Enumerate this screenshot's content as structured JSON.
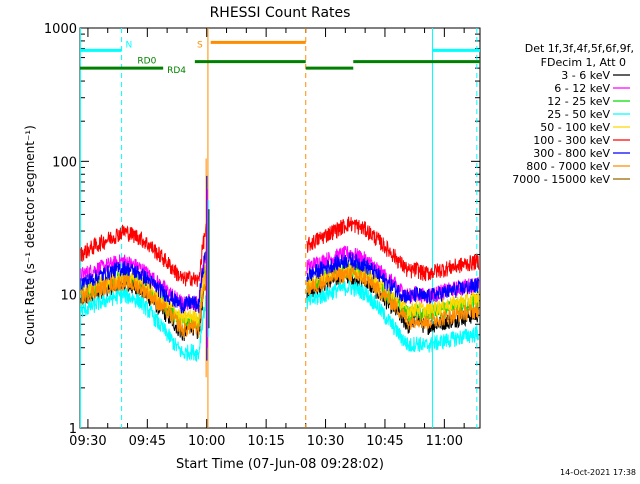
{
  "chart_data": {
    "type": "line",
    "title": "RHESSI Count Rates",
    "xlabel": "Start Time (07-Jun-08 09:28:02)",
    "ylabel": "Count Rate (s⁻¹ detector segment⁻¹)",
    "yscale": "log",
    "ylim": [
      1,
      1000
    ],
    "xlim_min_from_0928": [
      0,
      101
    ],
    "ytick_labels": [
      "1",
      "10",
      "100",
      "1000"
    ],
    "xtick_labels": [
      "09:30",
      "09:45",
      "10:00",
      "10:15",
      "10:30",
      "10:45",
      "11:00"
    ],
    "xtick_minutes": [
      2,
      17,
      32,
      47,
      62,
      77,
      92
    ],
    "legend": {
      "header": [
        "Det 1f,3f,4f,5f,6f,9f,",
        "FDecim 1, Att 0"
      ],
      "entries": [
        {
          "label": "3 - 6 keV",
          "color": "#000000"
        },
        {
          "label": "6 - 12 keV",
          "color": "#ff00ff"
        },
        {
          "label": "12 - 25 keV",
          "color": "#00dd00"
        },
        {
          "label": "25 - 50 keV",
          "color": "#00ffff"
        },
        {
          "label": "50 - 100 keV",
          "color": "#ffd700"
        },
        {
          "label": "100 - 300 keV",
          "color": "#ff0000"
        },
        {
          "label": "300 - 800 keV",
          "color": "#0000ff"
        },
        {
          "label": "800 - 7000 keV",
          "color": "#ff8c00"
        },
        {
          "label": "7000 - 15000 keV",
          "color": "#996600"
        }
      ]
    },
    "series": [
      {
        "name": "3 - 6 keV",
        "color": "#000000",
        "minutes": [
          0,
          8,
          11,
          15,
          20,
          24,
          26,
          28,
          30
        ],
        "values": [
          9,
          11.5,
          12,
          11,
          8,
          6,
          5,
          6,
          5
        ]
      },
      {
        "name": "6 - 12 keV",
        "color": "#ff00ff",
        "minutes": [
          0,
          8,
          11,
          15,
          20,
          24,
          26,
          28,
          30
        ],
        "values": [
          14,
          17,
          18,
          16,
          12,
          9.5,
          8.5,
          9,
          8.5
        ]
      },
      {
        "name": "12 - 25 keV",
        "color": "#00dd00",
        "minutes": [
          0,
          8,
          11,
          15,
          20,
          24,
          26,
          28,
          30
        ],
        "values": [
          10,
          13,
          13.5,
          12.5,
          9,
          7,
          6.2,
          6.5,
          6.2
        ]
      },
      {
        "name": "25 - 50 keV",
        "color": "#00ffff",
        "minutes": [
          0,
          8,
          11,
          15,
          20,
          24,
          26,
          28,
          30
        ],
        "values": [
          7.5,
          9.5,
          10,
          9,
          6,
          4.2,
          3.6,
          3.8,
          3.6
        ]
      },
      {
        "name": "50 - 100 keV",
        "color": "#ffd700",
        "minutes": [
          0,
          8,
          11,
          15,
          20,
          24,
          26,
          28,
          30
        ],
        "values": [
          10.5,
          13,
          13.5,
          12.5,
          9.5,
          7.5,
          6.6,
          7,
          6.6
        ]
      },
      {
        "name": "100 - 300 keV",
        "color": "#ff0000",
        "minutes": [
          0,
          8,
          11,
          15,
          20,
          24,
          26,
          28,
          30
        ],
        "values": [
          20,
          27,
          30,
          27,
          20,
          15,
          13,
          13.5,
          12.5
        ]
      },
      {
        "name": "300 - 800 keV",
        "color": "#0000ff",
        "minutes": [
          0,
          8,
          11,
          15,
          20,
          24,
          26,
          28,
          30
        ],
        "values": [
          12,
          15,
          16,
          14.5,
          11,
          9,
          8.3,
          8.8,
          8.3
        ]
      },
      {
        "name": "800 - 7000 keV",
        "color": "#ff8c00",
        "minutes": [
          0,
          8,
          11,
          15,
          20,
          24,
          26,
          28,
          30
        ],
        "values": [
          9.5,
          12,
          12.5,
          11.5,
          8.5,
          6.5,
          5.4,
          5.8,
          5.4
        ]
      }
    ],
    "flare_spike": {
      "minute": 32.2,
      "peak": 105,
      "low": 2.4
    },
    "gap_minutes": [
      33,
      57
    ],
    "after_gap_factor": 1.15,
    "state_bars": [
      {
        "label": "N",
        "color": "#00ffff",
        "level": 680,
        "segments": [
          [
            0,
            10.5
          ],
          [
            89,
            101
          ]
        ]
      },
      {
        "label": "S",
        "color": "#ff8c00",
        "level": 780,
        "segments": [
          [
            33,
            57
          ]
        ]
      },
      {
        "label": "RD0",
        "color": "#008000",
        "level": 560,
        "segments": [
          [
            29,
            57
          ],
          [
            69,
            101
          ]
        ]
      },
      {
        "label": "RD4",
        "color": "#008000",
        "level": 500,
        "segments": [
          [
            0,
            21
          ],
          [
            57,
            69
          ]
        ]
      }
    ],
    "vlines": [
      {
        "minute": 0.1,
        "color": "#00ffff",
        "dashed": false
      },
      {
        "minute": 10.5,
        "color": "#00ffff",
        "dashed": true
      },
      {
        "minute": 32.3,
        "color": "#ff8c00",
        "dashed": false
      },
      {
        "minute": 57,
        "color": "#ff8c00",
        "dashed": true
      },
      {
        "minute": 89,
        "color": "#00ffff",
        "dashed": false
      },
      {
        "minute": 100.2,
        "color": "#00ffff",
        "dashed": true
      }
    ]
  },
  "timestamp": "14-Oct-2021 17:38"
}
